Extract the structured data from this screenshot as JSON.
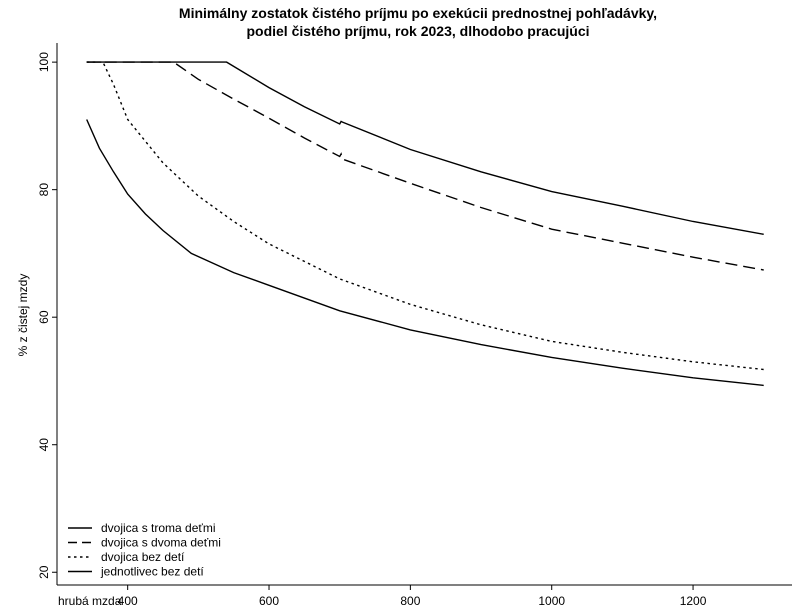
{
  "chart_data": {
    "type": "line",
    "title": "Minimálny zostatok čistého príjmu po exekúcii prednostnej pohľadávky,",
    "subtitle": "podiel čistého príjmu, rok 2023, dlhodobo pracujúci",
    "xlabel": "hrubá mzda",
    "ylabel": "% z čistej mzdy",
    "xlim": [
      300,
      1340
    ],
    "ylim": [
      18,
      103
    ],
    "xticks": [
      400,
      600,
      800,
      1000,
      1200
    ],
    "yticks": [
      20,
      40,
      60,
      80,
      100
    ],
    "legend_position": "bottom-left",
    "series": [
      {
        "name": "dvojica s troma deťmi",
        "dash": "solid",
        "x": [
          342,
          540,
          600,
          650,
          700,
          702,
          704,
          800,
          900,
          1000,
          1100,
          1200,
          1300
        ],
        "y": [
          100,
          100,
          96.0,
          93.0,
          90.3,
          90.7,
          90.6,
          86.3,
          82.8,
          79.7,
          77.4,
          75.0,
          73.0
        ]
      },
      {
        "name": "dvojica s dvoma deťmi",
        "dash": "dashed",
        "x": [
          342,
          465,
          500,
          550,
          600,
          650,
          700,
          702,
          704,
          800,
          900,
          1000,
          1100,
          1200,
          1300
        ],
        "y": [
          100,
          100,
          97.3,
          94.2,
          91.2,
          88.1,
          85.2,
          85.6,
          84.8,
          81.0,
          77.2,
          73.8,
          71.6,
          69.4,
          67.4
        ]
      },
      {
        "name": "dvojica bez detí",
        "dash": "dotted",
        "x": [
          342,
          365,
          380,
          400,
          450,
          500,
          550,
          600,
          700,
          800,
          900,
          1000,
          1100,
          1200,
          1300
        ],
        "y": [
          100,
          100,
          96.5,
          91.0,
          84.2,
          79.0,
          75.0,
          71.5,
          66.0,
          62.0,
          58.8,
          56.2,
          54.5,
          53.0,
          51.8
        ]
      },
      {
        "name": "jednotlivec bez detí",
        "dash": "solid",
        "x": [
          342,
          360,
          380,
          400,
          425,
          450,
          490,
          550,
          600,
          700,
          800,
          900,
          1000,
          1100,
          1200,
          1300
        ],
        "y": [
          91.0,
          86.5,
          82.8,
          79.3,
          76.2,
          73.6,
          70.0,
          67.0,
          65.0,
          61.0,
          58.0,
          55.7,
          53.7,
          52.0,
          50.5,
          49.3
        ]
      }
    ]
  }
}
